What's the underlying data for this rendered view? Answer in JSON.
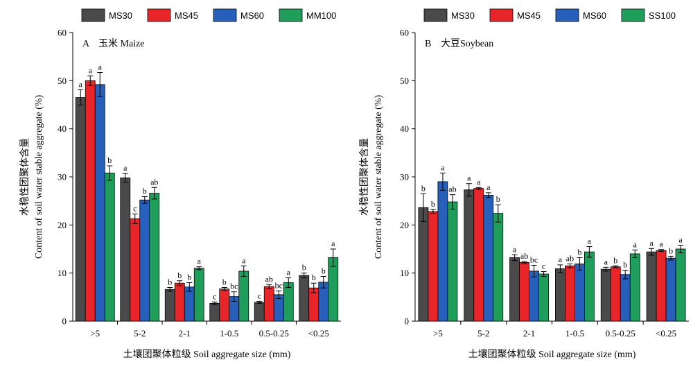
{
  "chart_data": [
    {
      "type": "bar",
      "panel_label": "A",
      "title": "玉米 Maize",
      "xlabel": "土壤团聚体粒级 Soil aggregate size (mm)",
      "ylabel_line1": "水稳性团聚体含量",
      "ylabel_line2": "Content of soil water stable aggregate (%)",
      "ylim": [
        0,
        60
      ],
      "yticks": [
        0,
        10,
        20,
        30,
        40,
        50,
        60
      ],
      "grid": false,
      "legend_position": "top",
      "categories": [
        ">5",
        "5-2",
        "2-1",
        "1-0.5",
        "0.5-0.25",
        "<0.25"
      ],
      "series": [
        {
          "name": "MS30",
          "color": "#4a4a4a",
          "values": [
            46.5,
            29.8,
            6.6,
            3.7,
            3.9,
            9.5
          ],
          "errors": [
            1.6,
            0.9,
            0.4,
            0.3,
            0.2,
            0.5
          ],
          "letters": [
            "a",
            "a",
            "b",
            "c",
            "c",
            "b"
          ]
        },
        {
          "name": "MS45",
          "color": "#e8262a",
          "values": [
            50.0,
            21.3,
            7.9,
            6.7,
            7.2,
            6.9
          ],
          "errors": [
            1.0,
            1.0,
            0.5,
            0.3,
            0.4,
            1.0
          ],
          "letters": [
            "a",
            "c",
            "b",
            "b",
            "ab",
            "b"
          ]
        },
        {
          "name": "MS60",
          "color": "#2660bb",
          "values": [
            49.2,
            25.2,
            7.1,
            5.1,
            5.5,
            8.1
          ],
          "errors": [
            2.5,
            0.7,
            0.9,
            1.0,
            0.8,
            1.2
          ],
          "letters": [
            "a",
            "b",
            "b",
            "bc",
            "bc",
            "b"
          ]
        },
        {
          "name": "MM100",
          "color": "#1e9e5a",
          "values": [
            30.8,
            26.6,
            11.0,
            10.4,
            8.0,
            13.2
          ],
          "errors": [
            1.5,
            1.2,
            0.3,
            1.1,
            1.0,
            1.8
          ],
          "letters": [
            "b",
            "ab",
            "a",
            "a",
            "a",
            "a"
          ]
        }
      ]
    },
    {
      "type": "bar",
      "panel_label": "B",
      "title": "大豆Soybean",
      "xlabel": "土壤团聚体粒级 Soil aggregate size (mm)",
      "ylabel_line1": "水稳性团聚体含量",
      "ylabel_line2": "Content of soil water stable aggregate (%)",
      "ylim": [
        0,
        60
      ],
      "yticks": [
        0,
        10,
        20,
        30,
        40,
        50,
        60
      ],
      "grid": false,
      "legend_position": "top",
      "categories": [
        ">5",
        "5-2",
        "2-1",
        "1-0.5",
        "0.5-0.25",
        "<0.25"
      ],
      "series": [
        {
          "name": "MS30",
          "color": "#4a4a4a",
          "values": [
            23.6,
            27.3,
            13.2,
            10.9,
            10.8,
            14.4
          ],
          "errors": [
            2.9,
            1.3,
            0.6,
            0.8,
            0.4,
            0.7
          ],
          "letters": [
            "b",
            "a",
            "a",
            "a",
            "a",
            "a"
          ]
        },
        {
          "name": "MS45",
          "color": "#e8262a",
          "values": [
            22.8,
            27.6,
            12.2,
            11.5,
            11.3,
            14.7
          ],
          "errors": [
            0.4,
            0.2,
            0.2,
            0.4,
            0.2,
            0.2
          ],
          "letters": [
            "b",
            "a",
            "ab",
            "ab",
            "b",
            "a"
          ]
        },
        {
          "name": "MS60",
          "color": "#2660bb",
          "values": [
            29.0,
            26.2,
            10.4,
            11.9,
            9.7,
            13.1
          ],
          "errors": [
            1.8,
            0.5,
            1.2,
            1.3,
            0.9,
            0.4
          ],
          "letters": [
            "a",
            "a",
            "bc",
            "b",
            "b",
            "b"
          ]
        },
        {
          "name": "SS100",
          "color": "#1e9e5a",
          "values": [
            24.8,
            22.4,
            9.8,
            14.4,
            14.0,
            15.0
          ],
          "errors": [
            1.5,
            1.8,
            0.5,
            1.1,
            0.8,
            0.8
          ],
          "letters": [
            "ab",
            "b",
            "c",
            "a",
            "a",
            "a"
          ]
        }
      ]
    }
  ]
}
